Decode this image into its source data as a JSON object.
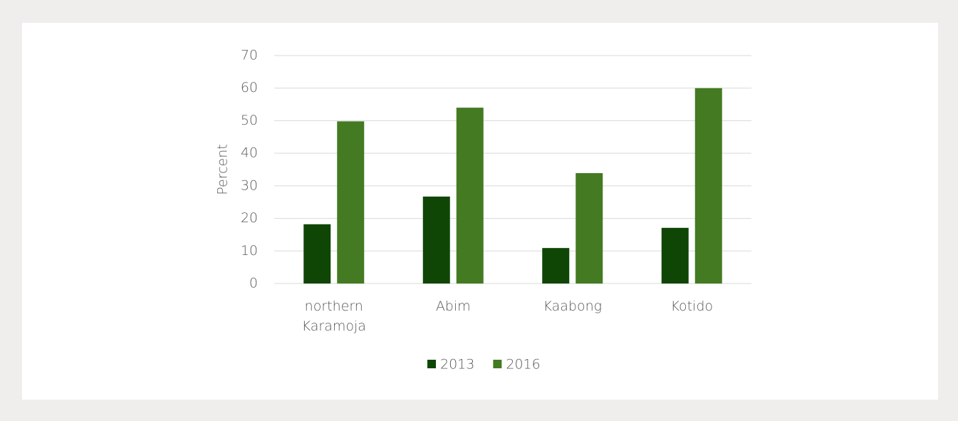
{
  "chart_data": {
    "type": "bar",
    "y_label": "Percent",
    "categories": [
      "northern Karamoja",
      "Abim",
      "Kaabong",
      "Kotido"
    ],
    "series": [
      {
        "name": "2013",
        "color": "#0f4606",
        "values": [
          18.2,
          26.7,
          10.9,
          17.1
        ]
      },
      {
        "name": "2016",
        "color": "#447a22",
        "values": [
          49.8,
          54,
          33.9,
          60
        ]
      }
    ],
    "ylim": [
      0,
      70
    ],
    "yticks": [
      0,
      10,
      20,
      30,
      40,
      50,
      60,
      70
    ],
    "grid": true,
    "legend": "bottom"
  }
}
